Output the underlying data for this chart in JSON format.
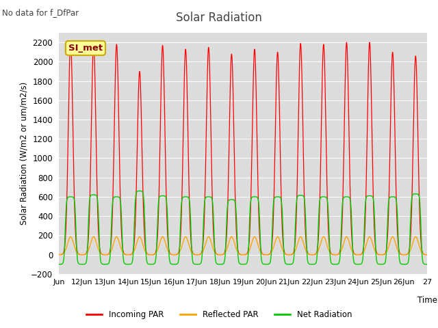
{
  "title": "Solar Radiation",
  "subtitle": "No data for f_DfPar",
  "ylabel": "Solar Radiation (W/m2 or um/m2/s)",
  "xlabel": "Time",
  "legend_label": "SI_met",
  "ylim": [
    -200,
    2300
  ],
  "yticks": [
    -200,
    0,
    200,
    400,
    600,
    800,
    1000,
    1200,
    1400,
    1600,
    1800,
    2000,
    2200
  ],
  "xtick_labels": [
    "Jun",
    "12Jun",
    "13Jun",
    "14Jun",
    "15Jun",
    "16Jun",
    "17Jun",
    "18Jun",
    "19Jun",
    "20Jun",
    "21Jun",
    "22Jun",
    "23Jun",
    "24Jun",
    "25Jun",
    "26Jun",
    "27"
  ],
  "colors": {
    "incoming": "#ff0000",
    "reflected": "#ffa500",
    "net": "#00cc00",
    "background": "#dcdcdc",
    "grid": "#ffffff",
    "legend_box_bg": "#ffff99",
    "legend_box_border": "#ccaa00"
  },
  "legend_items": [
    {
      "label": "Incoming PAR",
      "color": "#ff0000"
    },
    {
      "label": "Reflected PAR",
      "color": "#ffa500"
    },
    {
      "label": "Net Radiation",
      "color": "#00cc00"
    }
  ],
  "incoming_peaks": [
    2200,
    2180,
    2180,
    1900,
    2170,
    2130,
    2150,
    2080,
    2130,
    2100,
    2190,
    2180,
    2200,
    2200,
    2100,
    2060
  ],
  "net_peaks": [
    600,
    620,
    600,
    660,
    610,
    600,
    600,
    570,
    600,
    600,
    615,
    600,
    600,
    610,
    600,
    630
  ],
  "peak_reflected": 185,
  "trough_net": -100
}
